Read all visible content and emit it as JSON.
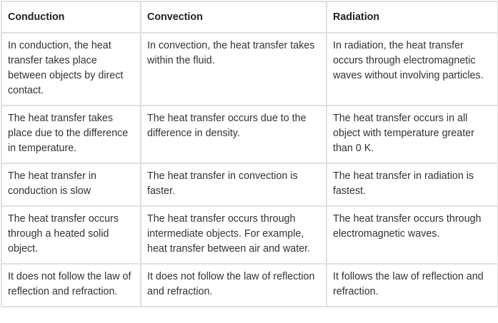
{
  "headers": [
    "Conduction",
    "Convection",
    "Radiation"
  ],
  "rows": [
    [
      "In conduction, the heat transfer takes place between objects by direct contact.",
      "In convection, the heat transfer takes within the fluid.",
      "In radiation, the heat transfer occurs through electromagnetic waves without involving particles."
    ],
    [
      "The heat transfer takes place due to the difference in temperature.",
      "The heat transfer occurs due to the difference in density.",
      "The heat transfer occurs in all object with temperature greater than 0 K."
    ],
    [
      "The heat transfer in conduction is slow",
      "The heat transfer in convection is faster.",
      "The heat transfer in radiation is fastest."
    ],
    [
      "The heat transfer occurs through a heated solid object.",
      "The heat transfer occurs through intermediate objects. For example, heat transfer between air and water.",
      "The heat transfer occurs through electromagnetic waves."
    ],
    [
      "It does not follow the law of reflection and refraction.",
      "It does not follow the law of reflection and refraction.",
      "It follows the law of reflection and refraction."
    ]
  ]
}
